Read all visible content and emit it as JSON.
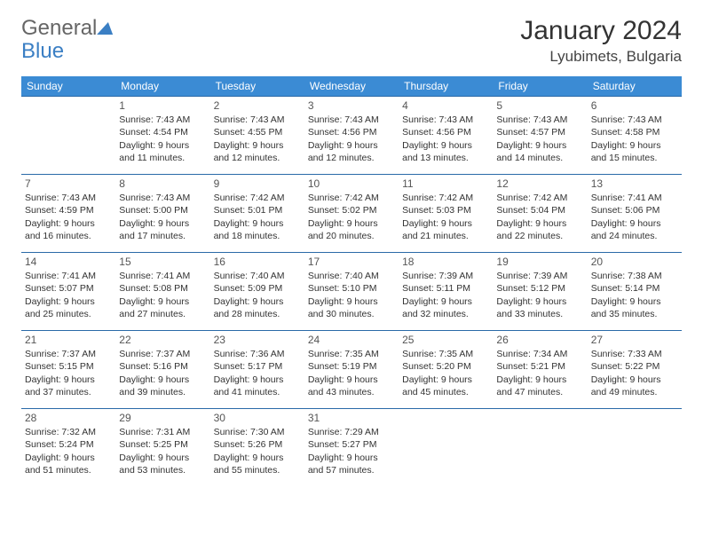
{
  "brand": {
    "part1": "General",
    "part2": "Blue"
  },
  "header": {
    "title": "January 2024",
    "location": "Lyubimets, Bulgaria"
  },
  "colors": {
    "header_bg": "#3b8bd4",
    "border": "#2a6aa8",
    "brand_blue": "#3b7fc4"
  },
  "weekdays": [
    "Sunday",
    "Monday",
    "Tuesday",
    "Wednesday",
    "Thursday",
    "Friday",
    "Saturday"
  ],
  "first_weekday_index": 1,
  "days": [
    {
      "n": "1",
      "sunrise": "Sunrise: 7:43 AM",
      "sunset": "Sunset: 4:54 PM",
      "d1": "Daylight: 9 hours",
      "d2": "and 11 minutes."
    },
    {
      "n": "2",
      "sunrise": "Sunrise: 7:43 AM",
      "sunset": "Sunset: 4:55 PM",
      "d1": "Daylight: 9 hours",
      "d2": "and 12 minutes."
    },
    {
      "n": "3",
      "sunrise": "Sunrise: 7:43 AM",
      "sunset": "Sunset: 4:56 PM",
      "d1": "Daylight: 9 hours",
      "d2": "and 12 minutes."
    },
    {
      "n": "4",
      "sunrise": "Sunrise: 7:43 AM",
      "sunset": "Sunset: 4:56 PM",
      "d1": "Daylight: 9 hours",
      "d2": "and 13 minutes."
    },
    {
      "n": "5",
      "sunrise": "Sunrise: 7:43 AM",
      "sunset": "Sunset: 4:57 PM",
      "d1": "Daylight: 9 hours",
      "d2": "and 14 minutes."
    },
    {
      "n": "6",
      "sunrise": "Sunrise: 7:43 AM",
      "sunset": "Sunset: 4:58 PM",
      "d1": "Daylight: 9 hours",
      "d2": "and 15 minutes."
    },
    {
      "n": "7",
      "sunrise": "Sunrise: 7:43 AM",
      "sunset": "Sunset: 4:59 PM",
      "d1": "Daylight: 9 hours",
      "d2": "and 16 minutes."
    },
    {
      "n": "8",
      "sunrise": "Sunrise: 7:43 AM",
      "sunset": "Sunset: 5:00 PM",
      "d1": "Daylight: 9 hours",
      "d2": "and 17 minutes."
    },
    {
      "n": "9",
      "sunrise": "Sunrise: 7:42 AM",
      "sunset": "Sunset: 5:01 PM",
      "d1": "Daylight: 9 hours",
      "d2": "and 18 minutes."
    },
    {
      "n": "10",
      "sunrise": "Sunrise: 7:42 AM",
      "sunset": "Sunset: 5:02 PM",
      "d1": "Daylight: 9 hours",
      "d2": "and 20 minutes."
    },
    {
      "n": "11",
      "sunrise": "Sunrise: 7:42 AM",
      "sunset": "Sunset: 5:03 PM",
      "d1": "Daylight: 9 hours",
      "d2": "and 21 minutes."
    },
    {
      "n": "12",
      "sunrise": "Sunrise: 7:42 AM",
      "sunset": "Sunset: 5:04 PM",
      "d1": "Daylight: 9 hours",
      "d2": "and 22 minutes."
    },
    {
      "n": "13",
      "sunrise": "Sunrise: 7:41 AM",
      "sunset": "Sunset: 5:06 PM",
      "d1": "Daylight: 9 hours",
      "d2": "and 24 minutes."
    },
    {
      "n": "14",
      "sunrise": "Sunrise: 7:41 AM",
      "sunset": "Sunset: 5:07 PM",
      "d1": "Daylight: 9 hours",
      "d2": "and 25 minutes."
    },
    {
      "n": "15",
      "sunrise": "Sunrise: 7:41 AM",
      "sunset": "Sunset: 5:08 PM",
      "d1": "Daylight: 9 hours",
      "d2": "and 27 minutes."
    },
    {
      "n": "16",
      "sunrise": "Sunrise: 7:40 AM",
      "sunset": "Sunset: 5:09 PM",
      "d1": "Daylight: 9 hours",
      "d2": "and 28 minutes."
    },
    {
      "n": "17",
      "sunrise": "Sunrise: 7:40 AM",
      "sunset": "Sunset: 5:10 PM",
      "d1": "Daylight: 9 hours",
      "d2": "and 30 minutes."
    },
    {
      "n": "18",
      "sunrise": "Sunrise: 7:39 AM",
      "sunset": "Sunset: 5:11 PM",
      "d1": "Daylight: 9 hours",
      "d2": "and 32 minutes."
    },
    {
      "n": "19",
      "sunrise": "Sunrise: 7:39 AM",
      "sunset": "Sunset: 5:12 PM",
      "d1": "Daylight: 9 hours",
      "d2": "and 33 minutes."
    },
    {
      "n": "20",
      "sunrise": "Sunrise: 7:38 AM",
      "sunset": "Sunset: 5:14 PM",
      "d1": "Daylight: 9 hours",
      "d2": "and 35 minutes."
    },
    {
      "n": "21",
      "sunrise": "Sunrise: 7:37 AM",
      "sunset": "Sunset: 5:15 PM",
      "d1": "Daylight: 9 hours",
      "d2": "and 37 minutes."
    },
    {
      "n": "22",
      "sunrise": "Sunrise: 7:37 AM",
      "sunset": "Sunset: 5:16 PM",
      "d1": "Daylight: 9 hours",
      "d2": "and 39 minutes."
    },
    {
      "n": "23",
      "sunrise": "Sunrise: 7:36 AM",
      "sunset": "Sunset: 5:17 PM",
      "d1": "Daylight: 9 hours",
      "d2": "and 41 minutes."
    },
    {
      "n": "24",
      "sunrise": "Sunrise: 7:35 AM",
      "sunset": "Sunset: 5:19 PM",
      "d1": "Daylight: 9 hours",
      "d2": "and 43 minutes."
    },
    {
      "n": "25",
      "sunrise": "Sunrise: 7:35 AM",
      "sunset": "Sunset: 5:20 PM",
      "d1": "Daylight: 9 hours",
      "d2": "and 45 minutes."
    },
    {
      "n": "26",
      "sunrise": "Sunrise: 7:34 AM",
      "sunset": "Sunset: 5:21 PM",
      "d1": "Daylight: 9 hours",
      "d2": "and 47 minutes."
    },
    {
      "n": "27",
      "sunrise": "Sunrise: 7:33 AM",
      "sunset": "Sunset: 5:22 PM",
      "d1": "Daylight: 9 hours",
      "d2": "and 49 minutes."
    },
    {
      "n": "28",
      "sunrise": "Sunrise: 7:32 AM",
      "sunset": "Sunset: 5:24 PM",
      "d1": "Daylight: 9 hours",
      "d2": "and 51 minutes."
    },
    {
      "n": "29",
      "sunrise": "Sunrise: 7:31 AM",
      "sunset": "Sunset: 5:25 PM",
      "d1": "Daylight: 9 hours",
      "d2": "and 53 minutes."
    },
    {
      "n": "30",
      "sunrise": "Sunrise: 7:30 AM",
      "sunset": "Sunset: 5:26 PM",
      "d1": "Daylight: 9 hours",
      "d2": "and 55 minutes."
    },
    {
      "n": "31",
      "sunrise": "Sunrise: 7:29 AM",
      "sunset": "Sunset: 5:27 PM",
      "d1": "Daylight: 9 hours",
      "d2": "and 57 minutes."
    }
  ]
}
